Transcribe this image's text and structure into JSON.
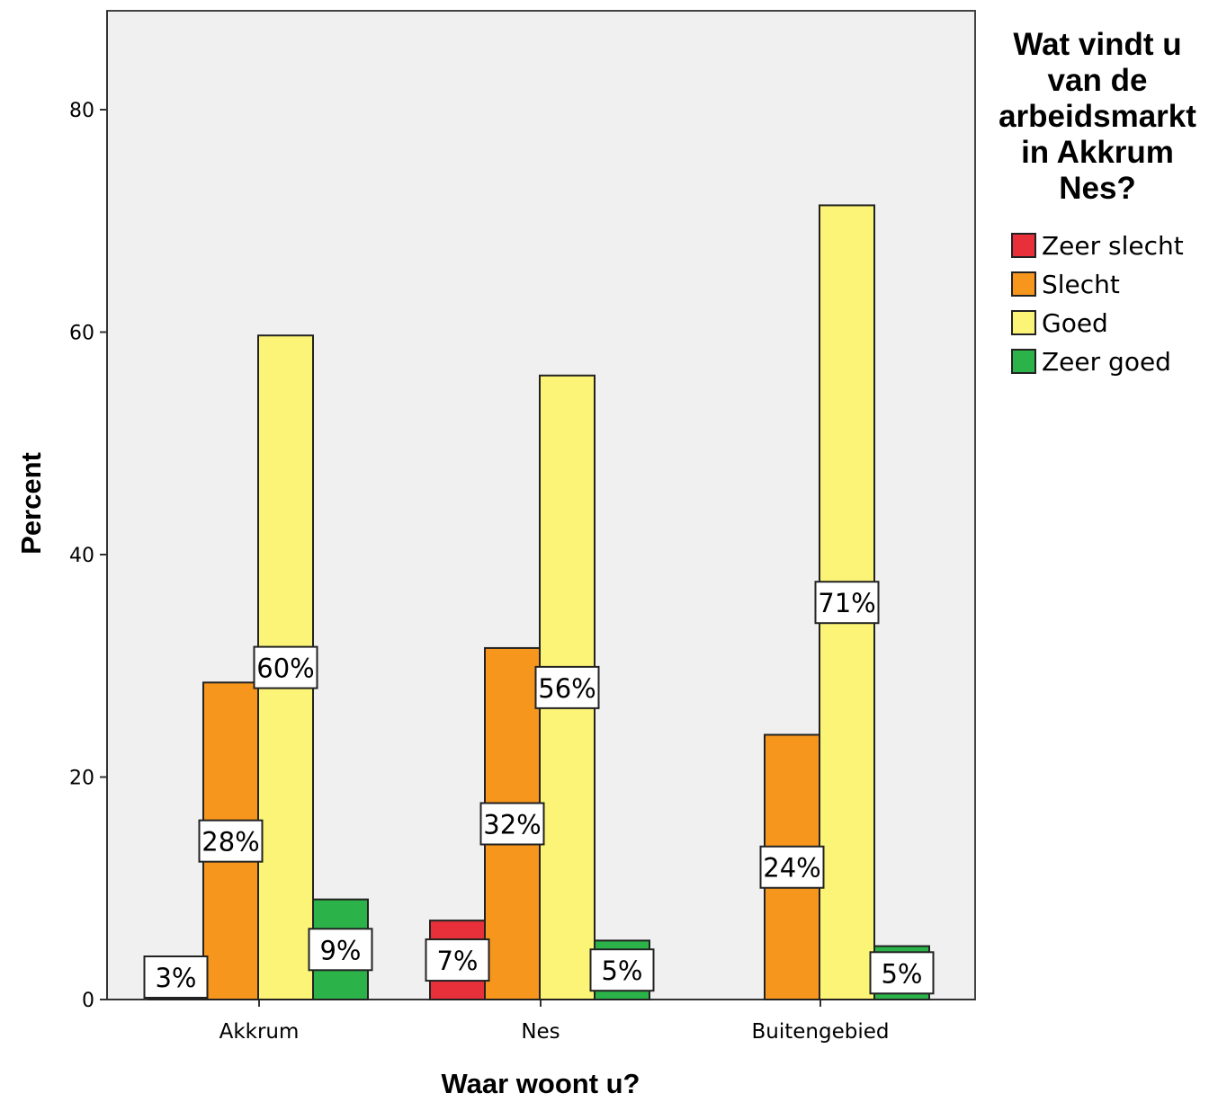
{
  "chart_data": {
    "type": "bar",
    "title": "",
    "xlabel": "Waar woont u?",
    "ylabel": "Percent",
    "ylim": [
      0,
      87
    ],
    "yticks": [
      0,
      20,
      40,
      60,
      80
    ],
    "grid": false,
    "legend_position": "right",
    "legend_title": "Wat vindt u van de arbeidsmarkt in Akkrum Nes?",
    "categories": [
      "Akkrum",
      "Nes",
      "Buitengebied"
    ],
    "series": [
      {
        "name": "Zeer slecht",
        "color": "#e8303a",
        "values": [
          2.9,
          7.1,
          0
        ],
        "labels": [
          "3%",
          "7%",
          ""
        ]
      },
      {
        "name": "Slecht",
        "color": "#f7961d",
        "values": [
          28.5,
          31.6,
          23.8
        ],
        "labels": [
          "28%",
          "32%",
          "24%"
        ]
      },
      {
        "name": "Goed",
        "color": "#fbf476",
        "values": [
          59.7,
          56.1,
          71.4
        ],
        "labels": [
          "60%",
          "56%",
          "71%"
        ]
      },
      {
        "name": "Zeer goed",
        "color": "#2bb34a",
        "values": [
          9.0,
          5.3,
          4.8
        ],
        "labels": [
          "9%",
          "5%",
          "5%"
        ]
      }
    ]
  }
}
